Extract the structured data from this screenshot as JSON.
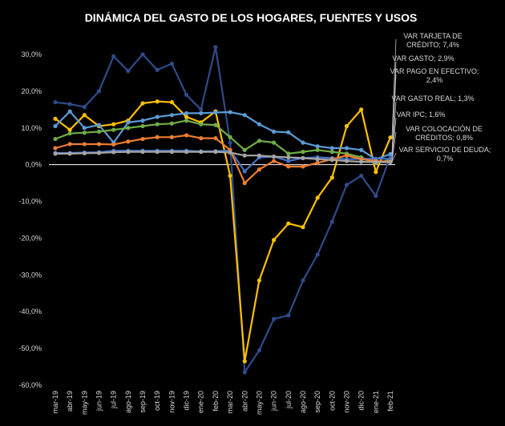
{
  "chart_data": {
    "type": "line",
    "title": "DINÁMICA DEL GASTO DE LOS HOGARES, FUENTES Y USOS",
    "xlabel": "",
    "ylabel": "",
    "ylim": [
      -60,
      30
    ],
    "yticks": [
      30,
      20,
      10,
      0,
      -10,
      -20,
      -30,
      -40,
      -50,
      -60
    ],
    "ytick_labels": [
      "30,0%",
      "20,0%",
      "10,0%",
      "0,0%",
      "-10,0%",
      "-20,0%",
      "-30,0%",
      "-40,0%",
      "-50,0%",
      "-60,0%"
    ],
    "categories": [
      "mar-19",
      "abr-19",
      "may-19",
      "jun-19",
      "jul-19",
      "ago-19",
      "sep-19",
      "oct-19",
      "nov-19",
      "dic-19",
      "ene-20",
      "feb-20",
      "mar-20",
      "abr-20",
      "may-20",
      "jun-20",
      "jul-20",
      "ago-20",
      "sep-20",
      "oct-20",
      "nov-20",
      "dic-20",
      "ene-21",
      "feb-21"
    ],
    "x_tick_labels": [
      "mar-19",
      "abr-19",
      "may-19",
      "jun-19",
      "jul-19",
      "ago-19",
      "sep-19",
      "oct-19",
      "nov-19",
      "dic-19",
      "ene-20",
      "feb-20",
      "mar-20",
      "abr-20",
      "may-20",
      "jun-20",
      "jul-20",
      "ago-20",
      "sep-20",
      "oct-20",
      "nov-20",
      "dic-20",
      "ene-21",
      "feb-21"
    ],
    "series": [
      {
        "name": "VAR PAGO EN EFECTIVO",
        "color": "#2f4b8a",
        "values": [
          17.0,
          16.5,
          15.7,
          20.0,
          29.5,
          25.5,
          30.0,
          25.8,
          27.5,
          19.0,
          15.0,
          32.0,
          6.0,
          -56.5,
          -50.5,
          -42.0,
          -41.0,
          -31.5,
          -24.5,
          -15.5,
          -5.5,
          -3.0,
          -8.5,
          2.4
        ],
        "end_label": "VAR PAGO EN EFECTIVO; 2,4%"
      },
      {
        "name": "VAR TARJETA DE CRÉDITO",
        "color": "#ffc000",
        "values": [
          12.5,
          9.5,
          13.5,
          10.5,
          11.0,
          12.0,
          16.7,
          17.2,
          17.0,
          13.0,
          11.5,
          14.5,
          -3.0,
          -53.5,
          -31.5,
          -20.5,
          -16.0,
          -17.0,
          -9.0,
          -3.5,
          10.5,
          15.0,
          -2.0,
          7.4
        ],
        "end_label": "VAR TARJETA DE CRÉDITO; 7,4%"
      },
      {
        "name": "VAR GASTO",
        "color": "#5b9bd5",
        "values": [
          10.5,
          14.5,
          10.0,
          10.8,
          6.0,
          11.5,
          12.0,
          13.0,
          13.5,
          14.0,
          14.0,
          14.2,
          14.3,
          13.5,
          11.0,
          9.0,
          8.8,
          6.0,
          5.0,
          4.5,
          4.5,
          4.0,
          1.5,
          2.9
        ],
        "end_label": "VAR GASTO; 2,9%"
      },
      {
        "name": "VAR GASTO REAL",
        "color": "#70ad47",
        "values": [
          7.0,
          8.5,
          8.7,
          9.0,
          9.5,
          10.0,
          10.5,
          11.0,
          11.2,
          12.0,
          11.0,
          10.8,
          7.5,
          4.0,
          6.5,
          6.0,
          3.0,
          3.5,
          4.0,
          3.5,
          3.0,
          2.0,
          0.5,
          1.3
        ],
        "end_label": "VAR GASTO REAL; 1,3%"
      },
      {
        "name": "VAR IPC",
        "color": "#4472c4",
        "values": [
          3.2,
          3.2,
          3.3,
          3.4,
          3.8,
          3.8,
          3.8,
          3.8,
          3.8,
          3.8,
          3.6,
          3.7,
          3.9,
          -1.8,
          2.0,
          2.2,
          1.0,
          1.8,
          2.0,
          1.8,
          1.5,
          1.6,
          1.6,
          1.6
        ],
        "end_label": "VAR IPC; 1,6%"
      },
      {
        "name": "VAR COLOCACIÓN DE CRÉDITOS",
        "color": "#ed7d31",
        "values": [
          4.5,
          5.6,
          5.6,
          5.6,
          5.5,
          6.3,
          7.0,
          7.5,
          7.5,
          8.0,
          7.2,
          7.2,
          4.0,
          -5.0,
          -1.3,
          1.0,
          -0.5,
          -0.5,
          0.5,
          1.5,
          2.5,
          1.5,
          1.0,
          0.8
        ],
        "end_label": "VAR COLOCACIÓN DE CRÉDITOS; 0,8%"
      },
      {
        "name": "VAR SERVICIO DE DEUDA",
        "color": "#a5a5a5",
        "values": [
          3.0,
          3.0,
          3.1,
          3.2,
          3.4,
          3.5,
          3.5,
          3.5,
          3.5,
          3.5,
          3.5,
          3.5,
          3.3,
          2.5,
          2.5,
          2.2,
          2.0,
          1.8,
          1.5,
          1.3,
          1.0,
          0.8,
          0.7,
          0.7
        ],
        "end_label": "VAR SERVICIO DE DEUDA; 0,7%"
      }
    ],
    "legend_placement": "right",
    "end_labels": [
      {
        "lines": [
          "VAR TARJETA DE",
          "CRÉDITO; 7,4%"
        ],
        "series": "VAR TARJETA DE CRÉDITO"
      },
      {
        "lines": [
          "VAR GASTO; 2,9%"
        ],
        "series": "VAR GASTO"
      },
      {
        "lines": [
          "VAR PAGO EN EFECTIVO;",
          "2,4%"
        ],
        "series": "VAR PAGO EN EFECTIVO"
      },
      {
        "lines": [
          "VAR GASTO REAL; 1,3%"
        ],
        "series": "VAR GASTO REAL"
      },
      {
        "lines": [
          "VAR IPC; 1,6%"
        ],
        "series": "VAR IPC"
      },
      {
        "lines": [
          "VAR COLOCACIÓN DE",
          "CRÉDITOS; 0,8%"
        ],
        "series": "VAR COLOCACIÓN DE CRÉDITOS"
      },
      {
        "lines": [
          "VAR SERVICIO DE DEUDA;",
          "0,7%"
        ],
        "series": "VAR SERVICIO DE DEUDA"
      }
    ]
  }
}
